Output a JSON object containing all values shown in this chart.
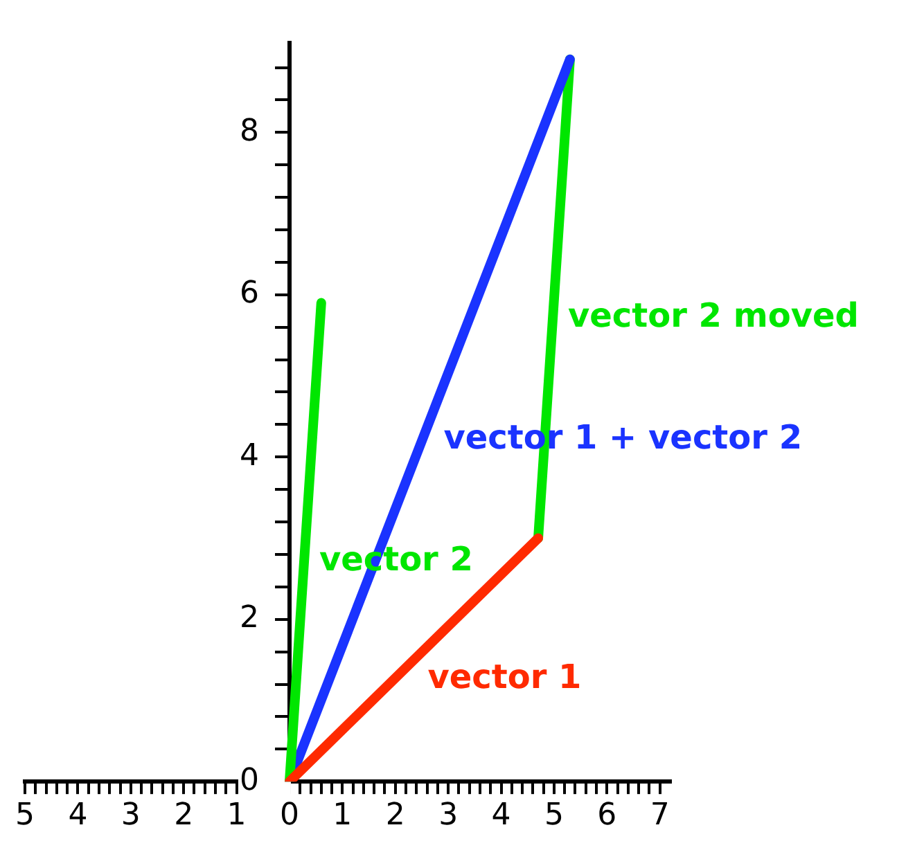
{
  "chart_data": {
    "type": "line",
    "marker": "none",
    "legend": false,
    "grid": false,
    "line_style": "solid",
    "xlim": [
      -5,
      7.2
    ],
    "ylim": [
      0,
      9.1
    ],
    "xticks": [
      {
        "value": -5,
        "label": "5"
      },
      {
        "value": -4.8,
        "label": null
      },
      {
        "value": -4.6,
        "label": null
      },
      {
        "value": -4.4,
        "label": null
      },
      {
        "value": -4.2,
        "label": null
      },
      {
        "value": -4,
        "label": "4"
      },
      {
        "value": -3.8,
        "label": null
      },
      {
        "value": -3.6,
        "label": null
      },
      {
        "value": -3.4,
        "label": null
      },
      {
        "value": -3.2,
        "label": null
      },
      {
        "value": -3,
        "label": "3"
      },
      {
        "value": -2.8,
        "label": null
      },
      {
        "value": -2.6,
        "label": null
      },
      {
        "value": -2.4,
        "label": null
      },
      {
        "value": -2.2,
        "label": null
      },
      {
        "value": -2,
        "label": "2"
      },
      {
        "value": -1.8,
        "label": null
      },
      {
        "value": -1.6,
        "label": null
      },
      {
        "value": -1.4,
        "label": null
      },
      {
        "value": -1.2,
        "label": null
      },
      {
        "value": -1,
        "label": "1"
      },
      {
        "value": -0.8,
        "label": null
      },
      {
        "value": -0.6,
        "label": null
      },
      {
        "value": -0.4,
        "label": null
      },
      {
        "value": -0.2,
        "label": null
      },
      0,
      {
        "value": 0.2,
        "label": null
      },
      {
        "value": 0.4,
        "label": null
      },
      {
        "value": 0.6,
        "label": null
      },
      {
        "value": 0.8,
        "label": null
      },
      1,
      {
        "value": 1.2,
        "label": null
      },
      {
        "value": 1.4,
        "label": null
      },
      {
        "value": 1.6,
        "label": null
      },
      {
        "value": 1.8,
        "label": null
      },
      2,
      {
        "value": 2.2,
        "label": null
      },
      {
        "value": 2.4,
        "label": null
      },
      {
        "value": 2.6,
        "label": null
      },
      {
        "value": 2.8,
        "label": null
      },
      3,
      {
        "value": 3.2,
        "label": null
      },
      {
        "value": 3.4,
        "label": null
      },
      {
        "value": 3.6,
        "label": null
      },
      {
        "value": 3.8,
        "label": null
      },
      4,
      {
        "value": 4.2,
        "label": null
      },
      {
        "value": 4.4,
        "label": null
      },
      {
        "value": 4.6,
        "label": null
      },
      {
        "value": 4.8,
        "label": null
      },
      5,
      {
        "value": 5.2,
        "label": null
      },
      {
        "value": 5.4,
        "label": null
      },
      {
        "value": 5.6,
        "label": null
      },
      {
        "value": 5.8,
        "label": null
      },
      6,
      {
        "value": 6.2,
        "label": null
      },
      {
        "value": 6.4,
        "label": null
      },
      {
        "value": 6.6,
        "label": null
      },
      {
        "value": 6.8,
        "label": null
      },
      7
    ],
    "yticks": [
      0,
      {
        "value": 0.4,
        "label": null
      },
      {
        "value": 0.8,
        "label": null
      },
      {
        "value": 1.2,
        "label": null
      },
      {
        "value": 1.6,
        "label": null
      },
      2,
      {
        "value": 2.4,
        "label": null
      },
      {
        "value": 2.8,
        "label": null
      },
      {
        "value": 3.2,
        "label": null
      },
      {
        "value": 3.6,
        "label": null
      },
      4,
      {
        "value": 4.4,
        "label": null
      },
      {
        "value": 4.8,
        "label": null
      },
      {
        "value": 5.2,
        "label": null
      },
      {
        "value": 5.6,
        "label": null
      },
      6,
      {
        "value": 6.4,
        "label": null
      },
      {
        "value": 6.8,
        "label": null
      },
      {
        "value": 7.2,
        "label": null
      },
      {
        "value": 7.6,
        "label": null
      },
      8,
      {
        "value": 8.4,
        "label": null
      },
      {
        "value": 8.8,
        "label": null
      }
    ],
    "series": [
      {
        "name": "vector 1",
        "color": "#ff2a00",
        "x": [
          0,
          4.7
        ],
        "values": [
          0,
          3
        ]
      },
      {
        "name": "vector 2",
        "color": "#00e600",
        "x": [
          0,
          0.6
        ],
        "values": [
          0,
          5.9
        ]
      },
      {
        "name": "vector 1 + vector 2",
        "color": "#1a33ff",
        "x": [
          0,
          5.3
        ],
        "values": [
          0,
          8.9
        ]
      },
      {
        "name": "vector 2 moved",
        "color": "#00e600",
        "x": [
          4.7,
          5.3
        ],
        "values": [
          3,
          8.9
        ]
      }
    ]
  }
}
